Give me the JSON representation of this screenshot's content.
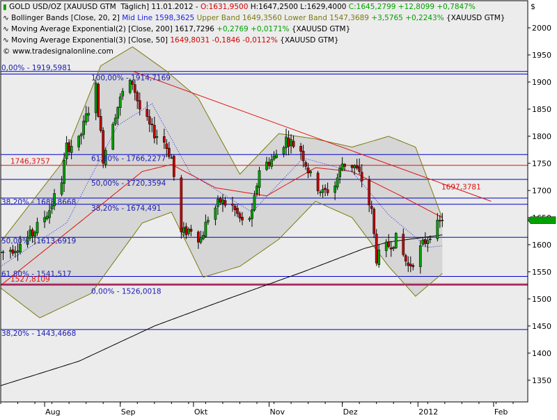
{
  "colors": {
    "plot_bg": "#ececec",
    "frame": "#000000",
    "fib_line": "#0000c8",
    "fib_text": "#1a1ab0",
    "trend": "#e01010",
    "ema200": "#000000",
    "ema50": "#e01010",
    "bb_mid": "#2020e0",
    "bb_band": "#7a7a10",
    "bb_fill": "#d6d6d6",
    "candle_up": "#00a000",
    "candle_down": "#c00000",
    "price_tag_up": "#00a000",
    "price_tag_down": "#d00000",
    "purple_line": "#800060"
  },
  "header": {
    "currency_label": "$",
    "lines": [
      {
        "icon": "candlestick-icon",
        "parts": [
          {
            "text": "GOLD USD/OZ [XAUUSD GTM  Täglich] 11.01.2012 - ",
            "color": "#000000"
          },
          {
            "text": "O:1631,9500",
            "color": "#d00000"
          },
          {
            "text": " H:1647,2500 L:1629,4000 ",
            "color": "#000000"
          },
          {
            "text": "C:1645,2799 +12,8099 +0,7847%",
            "color": "#00a000"
          }
        ]
      },
      {
        "icon": "indicator-wave-icon",
        "parts": [
          {
            "text": "Bollinger Bands [Close, 20, 2] ",
            "color": "#000000"
          },
          {
            "text": "Mid Line 1598,3625 ",
            "color": "#2020e0"
          },
          {
            "text": "Upper Band 1649,3560 Lower Band 1547,3689 ",
            "color": "#7a7a10"
          },
          {
            "text": "+3,5765 +0,2243%",
            "color": "#00a000"
          },
          {
            "text": " {XAUUSD GTM}",
            "color": "#000000"
          }
        ]
      },
      {
        "icon": "indicator-wave-icon",
        "parts": [
          {
            "text": "Moving Average Exponential(2) [Close, 200] 1617,7296 ",
            "color": "#000000"
          },
          {
            "text": "+0,2769 +0,0171%",
            "color": "#00a000"
          },
          {
            "text": " {XAUUSD GTM}",
            "color": "#000000"
          }
        ]
      },
      {
        "icon": "indicator-wave-icon",
        "parts": [
          {
            "text": "Moving Average Exponential(3) [Close, 50] ",
            "color": "#000000"
          },
          {
            "text": "1649,8031 -0,1846 -0,0112%",
            "color": "#d00000"
          },
          {
            "text": " {XAUUSD GTM}",
            "color": "#000000"
          }
        ]
      },
      {
        "icon": "copyright-icon",
        "parts": [
          {
            "text": "www.tradesignalonline.com",
            "color": "#000000"
          }
        ]
      }
    ]
  },
  "chart_data": {
    "type": "candlestick",
    "title": "GOLD USD/OZ [XAUUSD GTM  Täglich] 11.01.2012",
    "y_axis_side": "right",
    "ylim": [
      1310,
      2050
    ],
    "xlim": [
      "2011-07-14",
      "2012-02-15"
    ],
    "y_ticks": [
      1350,
      1400,
      1450,
      1500,
      1550,
      1600,
      1650,
      1700,
      1750,
      1800,
      1850,
      1900,
      1950,
      2000
    ],
    "y_tick_labels": [
      "1350",
      "1400",
      "1450",
      "1500",
      "1550",
      "1600",
      "1650",
      "1700",
      "1750",
      "1800",
      "1850",
      "1900",
      "1950",
      "2000"
    ],
    "x_ticks": [
      {
        "date": "2011-08-01",
        "label": "Aug"
      },
      {
        "date": "2011-09-01",
        "label": "Sep"
      },
      {
        "date": "2011-10-01",
        "label": "Okt"
      },
      {
        "date": "2011-11-01",
        "label": "Nov"
      },
      {
        "date": "2011-12-01",
        "label": "Dez"
      },
      {
        "date": "2012-01-01",
        "label": "2012"
      },
      {
        "date": "2012-02-01",
        "label": "Feb"
      }
    ],
    "grid": false,
    "last_close": 1645.28,
    "candle_waypoints": [
      [
        "2011-07-14",
        1585
      ],
      [
        "2011-07-20",
        1595
      ],
      [
        "2011-07-27",
        1620
      ],
      [
        "2011-08-03",
        1665
      ],
      [
        "2011-08-08",
        1720
      ],
      [
        "2011-08-10",
        1780
      ],
      [
        "2011-08-15",
        1790
      ],
      [
        "2011-08-19",
        1850
      ],
      [
        "2011-08-22",
        1890
      ],
      [
        "2011-08-25",
        1760
      ],
      [
        "2011-08-29",
        1830
      ],
      [
        "2011-09-02",
        1880
      ],
      [
        "2011-09-06",
        1900
      ],
      [
        "2011-09-09",
        1850
      ],
      [
        "2011-09-14",
        1810
      ],
      [
        "2011-09-19",
        1790
      ],
      [
        "2011-09-22",
        1760
      ],
      [
        "2011-09-26",
        1620
      ],
      [
        "2011-09-30",
        1630
      ],
      [
        "2011-10-04",
        1610
      ],
      [
        "2011-10-07",
        1650
      ],
      [
        "2011-10-12",
        1680
      ],
      [
        "2011-10-17",
        1670
      ],
      [
        "2011-10-21",
        1640
      ],
      [
        "2011-10-25",
        1655
      ],
      [
        "2011-10-28",
        1740
      ],
      [
        "2011-11-03",
        1760
      ],
      [
        "2011-11-08",
        1795
      ],
      [
        "2011-11-14",
        1775
      ],
      [
        "2011-11-18",
        1725
      ],
      [
        "2011-11-23",
        1695
      ],
      [
        "2011-11-28",
        1710
      ],
      [
        "2011-12-01",
        1750
      ],
      [
        "2011-12-06",
        1745
      ],
      [
        "2011-12-09",
        1720
      ],
      [
        "2011-12-13",
        1660
      ],
      [
        "2011-12-15",
        1575
      ],
      [
        "2011-12-19",
        1595
      ],
      [
        "2011-12-23",
        1610
      ],
      [
        "2011-12-28",
        1560
      ],
      [
        "2011-12-30",
        1570
      ],
      [
        "2012-01-03",
        1600
      ],
      [
        "2012-01-06",
        1620
      ],
      [
        "2012-01-11",
        1645
      ]
    ],
    "ema200_waypoints": [
      [
        "2011-07-14",
        1340
      ],
      [
        "2011-08-15",
        1385
      ],
      [
        "2011-09-15",
        1450
      ],
      [
        "2011-10-15",
        1500
      ],
      [
        "2011-11-15",
        1550
      ],
      [
        "2011-12-10",
        1593
      ],
      [
        "2011-12-20",
        1605
      ],
      [
        "2012-01-11",
        1618
      ]
    ],
    "ema50_waypoints": [
      [
        "2011-07-14",
        1525
      ],
      [
        "2011-08-15",
        1640
      ],
      [
        "2011-09-10",
        1735
      ],
      [
        "2011-09-22",
        1748
      ],
      [
        "2011-10-10",
        1705
      ],
      [
        "2011-10-31",
        1690
      ],
      [
        "2011-11-20",
        1742
      ],
      [
        "2011-12-05",
        1735
      ],
      [
        "2011-12-25",
        1690
      ],
      [
        "2012-01-11",
        1650
      ]
    ],
    "bollinger_mid_waypoints": [
      [
        "2011-07-14",
        1560
      ],
      [
        "2011-08-10",
        1640
      ],
      [
        "2011-08-31",
        1820
      ],
      [
        "2011-09-14",
        1860
      ],
      [
        "2011-09-30",
        1730
      ],
      [
        "2011-10-25",
        1660
      ],
      [
        "2011-11-15",
        1760
      ],
      [
        "2011-12-05",
        1735
      ],
      [
        "2011-12-20",
        1655
      ],
      [
        "2012-01-05",
        1595
      ],
      [
        "2012-01-11",
        1598
      ]
    ],
    "bollinger_upper_waypoints": [
      [
        "2011-07-14",
        1605
      ],
      [
        "2011-08-08",
        1750
      ],
      [
        "2011-08-24",
        1930
      ],
      [
        "2011-09-06",
        1965
      ],
      [
        "2011-09-20",
        1920
      ],
      [
        "2011-10-03",
        1870
      ],
      [
        "2011-10-20",
        1730
      ],
      [
        "2011-11-05",
        1805
      ],
      [
        "2011-11-20",
        1795
      ],
      [
        "2011-12-05",
        1780
      ],
      [
        "2011-12-20",
        1800
      ],
      [
        "2011-12-31",
        1780
      ],
      [
        "2012-01-11",
        1649
      ]
    ],
    "bollinger_lower_waypoints": [
      [
        "2011-07-14",
        1520
      ],
      [
        "2011-07-30",
        1465
      ],
      [
        "2011-08-20",
        1510
      ],
      [
        "2011-09-10",
        1640
      ],
      [
        "2011-09-22",
        1660
      ],
      [
        "2011-10-05",
        1540
      ],
      [
        "2011-10-20",
        1560
      ],
      [
        "2011-11-05",
        1610
      ],
      [
        "2011-11-20",
        1680
      ],
      [
        "2011-12-05",
        1650
      ],
      [
        "2011-12-20",
        1560
      ],
      [
        "2011-12-31",
        1505
      ],
      [
        "2012-01-11",
        1547
      ]
    ],
    "trend_line": {
      "from": [
        "2011-09-06",
        1920
      ],
      "to": [
        "2012-01-31",
        1680
      ],
      "label": "1697,3781"
    },
    "horizontal_levels": [
      {
        "value": 1919.5,
        "label": "0,00% - 1919,5981"
      },
      {
        "value": 1914.7,
        "label": "100,00% - 1914,7169"
      },
      {
        "value": 1766.23,
        "label": "61,80% - 1766,2277"
      },
      {
        "value": 1720.36,
        "label": "50,00% - 1720,3594"
      },
      {
        "value": 1685.87,
        "label": "38,20% - 1685,8668"
      },
      {
        "value": 1674.49,
        "label": "38,20% - 1674,491"
      },
      {
        "value": 1613.69,
        "label": "50,00% - 1613,6919"
      },
      {
        "value": 1541.52,
        "label": "61,80% - 1541,517"
      },
      {
        "value": 1526.0,
        "label": "0,00% - 1526,0018"
      },
      {
        "value": 1443.47,
        "label": "38,20% - 1443,4668"
      }
    ],
    "red_levels": [
      {
        "value": 1746.38,
        "label": "1746,3757"
      },
      {
        "value": 1527.81,
        "label": "1527,8109"
      }
    ]
  }
}
